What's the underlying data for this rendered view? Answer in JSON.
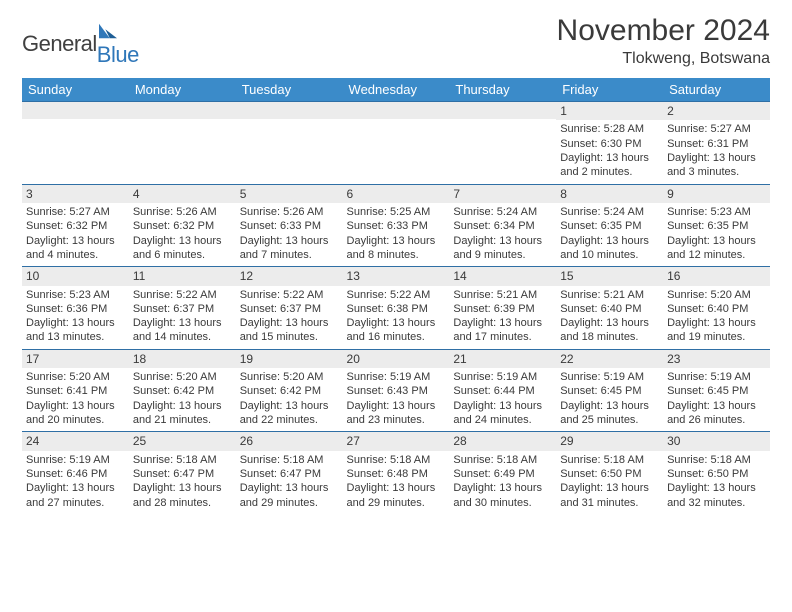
{
  "brand": {
    "word1": "General",
    "word2": "Blue"
  },
  "colors": {
    "header_bg": "#3b8bc9",
    "header_text": "#ffffff",
    "daynum_bg": "#ececec",
    "row_border": "#2f6fa5",
    "text": "#3a3a3a",
    "brand_blue": "#2f77b9"
  },
  "title": "November 2024",
  "subtitle": "Tlokweng, Botswana",
  "weekdays": [
    "Sunday",
    "Monday",
    "Tuesday",
    "Wednesday",
    "Thursday",
    "Friday",
    "Saturday"
  ],
  "weeks": [
    [
      {
        "n": "",
        "sunrise": "",
        "sunset": "",
        "daylight": ""
      },
      {
        "n": "",
        "sunrise": "",
        "sunset": "",
        "daylight": ""
      },
      {
        "n": "",
        "sunrise": "",
        "sunset": "",
        "daylight": ""
      },
      {
        "n": "",
        "sunrise": "",
        "sunset": "",
        "daylight": ""
      },
      {
        "n": "",
        "sunrise": "",
        "sunset": "",
        "daylight": ""
      },
      {
        "n": "1",
        "sunrise": "Sunrise: 5:28 AM",
        "sunset": "Sunset: 6:30 PM",
        "daylight": "Daylight: 13 hours and 2 minutes."
      },
      {
        "n": "2",
        "sunrise": "Sunrise: 5:27 AM",
        "sunset": "Sunset: 6:31 PM",
        "daylight": "Daylight: 13 hours and 3 minutes."
      }
    ],
    [
      {
        "n": "3",
        "sunrise": "Sunrise: 5:27 AM",
        "sunset": "Sunset: 6:32 PM",
        "daylight": "Daylight: 13 hours and 4 minutes."
      },
      {
        "n": "4",
        "sunrise": "Sunrise: 5:26 AM",
        "sunset": "Sunset: 6:32 PM",
        "daylight": "Daylight: 13 hours and 6 minutes."
      },
      {
        "n": "5",
        "sunrise": "Sunrise: 5:26 AM",
        "sunset": "Sunset: 6:33 PM",
        "daylight": "Daylight: 13 hours and 7 minutes."
      },
      {
        "n": "6",
        "sunrise": "Sunrise: 5:25 AM",
        "sunset": "Sunset: 6:33 PM",
        "daylight": "Daylight: 13 hours and 8 minutes."
      },
      {
        "n": "7",
        "sunrise": "Sunrise: 5:24 AM",
        "sunset": "Sunset: 6:34 PM",
        "daylight": "Daylight: 13 hours and 9 minutes."
      },
      {
        "n": "8",
        "sunrise": "Sunrise: 5:24 AM",
        "sunset": "Sunset: 6:35 PM",
        "daylight": "Daylight: 13 hours and 10 minutes."
      },
      {
        "n": "9",
        "sunrise": "Sunrise: 5:23 AM",
        "sunset": "Sunset: 6:35 PM",
        "daylight": "Daylight: 13 hours and 12 minutes."
      }
    ],
    [
      {
        "n": "10",
        "sunrise": "Sunrise: 5:23 AM",
        "sunset": "Sunset: 6:36 PM",
        "daylight": "Daylight: 13 hours and 13 minutes."
      },
      {
        "n": "11",
        "sunrise": "Sunrise: 5:22 AM",
        "sunset": "Sunset: 6:37 PM",
        "daylight": "Daylight: 13 hours and 14 minutes."
      },
      {
        "n": "12",
        "sunrise": "Sunrise: 5:22 AM",
        "sunset": "Sunset: 6:37 PM",
        "daylight": "Daylight: 13 hours and 15 minutes."
      },
      {
        "n": "13",
        "sunrise": "Sunrise: 5:22 AM",
        "sunset": "Sunset: 6:38 PM",
        "daylight": "Daylight: 13 hours and 16 minutes."
      },
      {
        "n": "14",
        "sunrise": "Sunrise: 5:21 AM",
        "sunset": "Sunset: 6:39 PM",
        "daylight": "Daylight: 13 hours and 17 minutes."
      },
      {
        "n": "15",
        "sunrise": "Sunrise: 5:21 AM",
        "sunset": "Sunset: 6:40 PM",
        "daylight": "Daylight: 13 hours and 18 minutes."
      },
      {
        "n": "16",
        "sunrise": "Sunrise: 5:20 AM",
        "sunset": "Sunset: 6:40 PM",
        "daylight": "Daylight: 13 hours and 19 minutes."
      }
    ],
    [
      {
        "n": "17",
        "sunrise": "Sunrise: 5:20 AM",
        "sunset": "Sunset: 6:41 PM",
        "daylight": "Daylight: 13 hours and 20 minutes."
      },
      {
        "n": "18",
        "sunrise": "Sunrise: 5:20 AM",
        "sunset": "Sunset: 6:42 PM",
        "daylight": "Daylight: 13 hours and 21 minutes."
      },
      {
        "n": "19",
        "sunrise": "Sunrise: 5:20 AM",
        "sunset": "Sunset: 6:42 PM",
        "daylight": "Daylight: 13 hours and 22 minutes."
      },
      {
        "n": "20",
        "sunrise": "Sunrise: 5:19 AM",
        "sunset": "Sunset: 6:43 PM",
        "daylight": "Daylight: 13 hours and 23 minutes."
      },
      {
        "n": "21",
        "sunrise": "Sunrise: 5:19 AM",
        "sunset": "Sunset: 6:44 PM",
        "daylight": "Daylight: 13 hours and 24 minutes."
      },
      {
        "n": "22",
        "sunrise": "Sunrise: 5:19 AM",
        "sunset": "Sunset: 6:45 PM",
        "daylight": "Daylight: 13 hours and 25 minutes."
      },
      {
        "n": "23",
        "sunrise": "Sunrise: 5:19 AM",
        "sunset": "Sunset: 6:45 PM",
        "daylight": "Daylight: 13 hours and 26 minutes."
      }
    ],
    [
      {
        "n": "24",
        "sunrise": "Sunrise: 5:19 AM",
        "sunset": "Sunset: 6:46 PM",
        "daylight": "Daylight: 13 hours and 27 minutes."
      },
      {
        "n": "25",
        "sunrise": "Sunrise: 5:18 AM",
        "sunset": "Sunset: 6:47 PM",
        "daylight": "Daylight: 13 hours and 28 minutes."
      },
      {
        "n": "26",
        "sunrise": "Sunrise: 5:18 AM",
        "sunset": "Sunset: 6:47 PM",
        "daylight": "Daylight: 13 hours and 29 minutes."
      },
      {
        "n": "27",
        "sunrise": "Sunrise: 5:18 AM",
        "sunset": "Sunset: 6:48 PM",
        "daylight": "Daylight: 13 hours and 29 minutes."
      },
      {
        "n": "28",
        "sunrise": "Sunrise: 5:18 AM",
        "sunset": "Sunset: 6:49 PM",
        "daylight": "Daylight: 13 hours and 30 minutes."
      },
      {
        "n": "29",
        "sunrise": "Sunrise: 5:18 AM",
        "sunset": "Sunset: 6:50 PM",
        "daylight": "Daylight: 13 hours and 31 minutes."
      },
      {
        "n": "30",
        "sunrise": "Sunrise: 5:18 AM",
        "sunset": "Sunset: 6:50 PM",
        "daylight": "Daylight: 13 hours and 32 minutes."
      }
    ]
  ]
}
